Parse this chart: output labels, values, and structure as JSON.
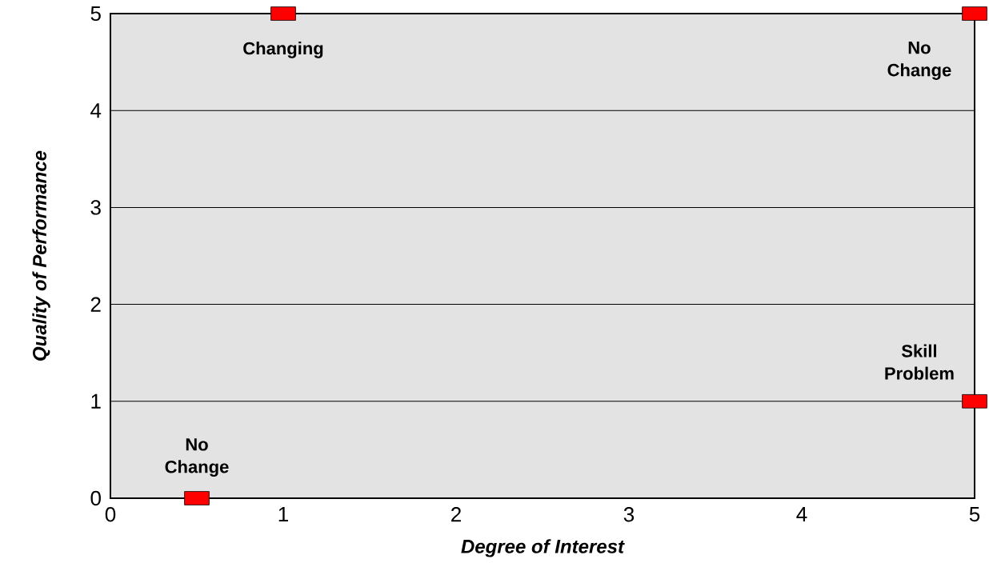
{
  "chart_data": {
    "type": "scatter",
    "xlabel": "Degree of Interest",
    "ylabel": "Quality of Performance",
    "x": [
      0.5,
      1,
      5,
      5
    ],
    "values": [
      0,
      5,
      5,
      1
    ],
    "color": "#ff0000",
    "marker": "square",
    "xlim": [
      0,
      5
    ],
    "ylim": [
      0,
      5
    ],
    "xticks": [
      0,
      1,
      2,
      3,
      4,
      5
    ],
    "yticks": [
      0,
      1,
      2,
      3,
      4,
      5
    ],
    "grid": "y",
    "annotations": [
      {
        "text": "No Change",
        "x": 0.5,
        "y": 0
      },
      {
        "text": "Changing",
        "x": 1,
        "y": 5
      },
      {
        "text": "No Change",
        "x": 5,
        "y": 5
      },
      {
        "text": "Skill Problem",
        "x": 5,
        "y": 1
      }
    ]
  }
}
